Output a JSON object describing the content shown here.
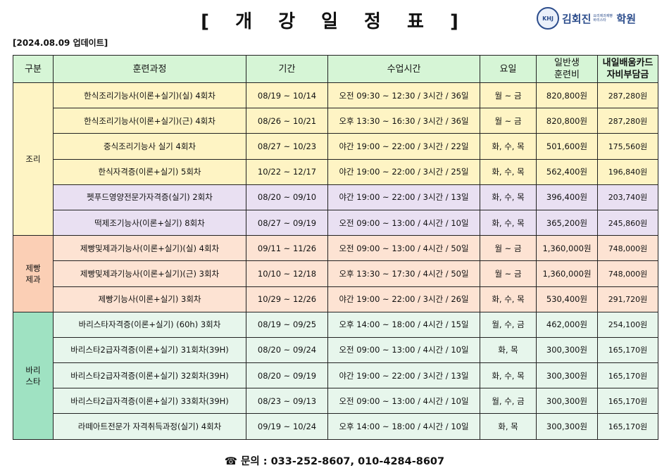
{
  "header": {
    "title": "[ 개 강 일 정 표 ]",
    "update": "[2024.08.09 업데이트]",
    "logo_name": "김회진",
    "logo_sub": "요리제과제빵 바리스타",
    "logo_hak": "학원",
    "logo_seal": "KHJ"
  },
  "table": {
    "headers": {
      "category": "구분",
      "course": "훈련과정",
      "period": "기간",
      "class_time": "수업시간",
      "days": "요일",
      "general_fee_1": "일반생",
      "general_fee_2": "훈련비",
      "card_fee_1": "내일배움카드",
      "card_fee_2": "자비부담금"
    },
    "categories": {
      "cook": "조리",
      "bake_1": "제빵",
      "bake_2": "제과",
      "barista_1": "바리",
      "barista_2": "스타"
    },
    "rows": [
      {
        "course": "한식조리기능사(이론+실기)(실) 4회차",
        "period": "08/19 ~ 10/14",
        "time": "오전 09:30 ~ 12:30 / 3시간 / 36일",
        "days": "월 ~ 금",
        "fee": "820,800원",
        "self_pay": "287,280원"
      },
      {
        "course": "한식조리기능사(이론+실기)(근) 4회차",
        "period": "08/26 ~ 10/21",
        "time": "오후 13:30 ~ 16:30 / 3시간 / 36일",
        "days": "월 ~ 금",
        "fee": "820,800원",
        "self_pay": "287,280원"
      },
      {
        "course": "중식조리기능사 실기 4회차",
        "period": "08/27 ~ 10/23",
        "time": "야간 19:00 ~ 22:00 / 3시간 / 22일",
        "days": "화, 수, 목",
        "fee": "501,600원",
        "self_pay": "175,560원"
      },
      {
        "course": "한식자격증(이론+실기) 5회차",
        "period": "10/22 ~ 12/17",
        "time": "야간 19:00 ~ 22:00 / 3시간 / 25일",
        "days": "화, 수, 목",
        "fee": "562,400원",
        "self_pay": "196,840원"
      },
      {
        "course": "펫푸드영양전문가자격증(실기) 2회차",
        "period": "08/20 ~ 09/10",
        "time": "야간 19:00 ~ 22:00 / 3시간 / 13일",
        "days": "화, 수, 목",
        "fee": "396,400원",
        "self_pay": "203,740원"
      },
      {
        "course": "떡제조기능사(이론+실기) 8회차",
        "period": "08/27 ~ 09/19",
        "time": "오전 09:00 ~ 13:00 / 4시간 / 10일",
        "days": "화, 수, 목",
        "fee": "365,200원",
        "self_pay": "245,860원"
      },
      {
        "course": "제빵및제과기능사(이론+실기)(실) 4회차",
        "period": "09/11 ~ 11/26",
        "time": "오전 09:00 ~ 13:00 / 4시간 / 50일",
        "days": "월 ~ 금",
        "fee": "1,360,000원",
        "self_pay": "748,000원"
      },
      {
        "course": "제빵및제과기능사(이론+실기)(근) 3회차",
        "period": "10/10 ~ 12/18",
        "time": "오후 13:30 ~ 17:30 / 4시간 / 50일",
        "days": "월 ~ 금",
        "fee": "1,360,000원",
        "self_pay": "748,000원"
      },
      {
        "course": "제빵기능사(이론+실기) 3회차",
        "period": "10/29 ~ 12/26",
        "time": "야간 19:00 ~ 22:00 / 3시간 / 26일",
        "days": "화, 수, 목",
        "fee": "530,400원",
        "self_pay": "291,720원"
      },
      {
        "course": "바리스타자격증(이론+실기) (60h) 3회차",
        "period": "08/19 ~ 09/25",
        "time": "오후 14:00 ~ 18:00 / 4시간 / 15일",
        "days": "월, 수, 금",
        "fee": "462,000원",
        "self_pay": "254,100원"
      },
      {
        "course": "바리스타2급자격증(이론+실기) 31회차(39H)",
        "period": "08/20 ~ 09/24",
        "time": "오전 09:00 ~ 13:00 / 4시간 / 10일",
        "days": "화, 목",
        "fee": "300,300원",
        "self_pay": "165,170원"
      },
      {
        "course": "바리스타2급자격증(이론+실기) 32회차(39H)",
        "period": "08/20 ~ 09/19",
        "time": "야간 19:00 ~ 22:00 / 3시간 / 13일",
        "days": "화, 수, 목",
        "fee": "300,300원",
        "self_pay": "165,170원"
      },
      {
        "course": "바리스타2급자격증(이론+실기) 33회차(39H)",
        "period": "08/23 ~ 09/13",
        "time": "오전 09:00 ~ 13:00 / 4시간 / 10일",
        "days": "월, 수, 금",
        "fee": "300,300원",
        "self_pay": "165,170원"
      },
      {
        "course": "라떼아트전문가 자격취득과정(실기) 4회차",
        "period": "09/19 ~ 10/24",
        "time": "오후 14:00 ~ 18:00 / 4시간 / 10일",
        "days": "화, 목",
        "fee": "300,300원",
        "self_pay": "165,170원"
      }
    ]
  },
  "footer": {
    "phone_icon": "telephone-icon",
    "contact": "문의 : 033-252-8607, 010-4284-8607"
  }
}
